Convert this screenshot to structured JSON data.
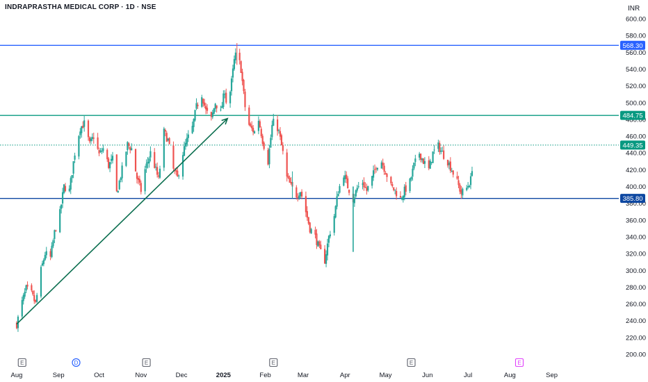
{
  "header": {
    "title": "INDRAPRASTHA MEDICAL CORP · 1D · NSE",
    "currency": "INR"
  },
  "colors": {
    "up": "#26a69a",
    "down": "#ef5350",
    "blue_line": "#2962ff",
    "navy_line": "#0d47a1",
    "green_line": "#089981",
    "trend": "#0b6e4f"
  },
  "chart_data": {
    "type": "candlestick",
    "title": "INDRAPRASTHA MEDICAL CORP · 1D · NSE",
    "y_axis": {
      "min": 200,
      "max": 600,
      "ticks": [
        200,
        220,
        240,
        260,
        280,
        300,
        320,
        340,
        360,
        380,
        400,
        420,
        440,
        460,
        480,
        500,
        520,
        540,
        560,
        580,
        600
      ],
      "unit": "INR"
    },
    "x_axis": {
      "labels": [
        "Aug",
        "Sep",
        "Oct",
        "Nov",
        "Dec",
        "2025",
        "Feb",
        "Mar",
        "Apr",
        "May",
        "Jun",
        "Jul",
        "Aug",
        "Sep"
      ],
      "start": "2024-08-01",
      "end": "2025-09-30"
    },
    "price_levels": [
      {
        "value": "568.30",
        "color": "#2962ff"
      },
      {
        "value": "484.75",
        "color": "#089981"
      },
      {
        "value": "449.35",
        "color": "#089981",
        "dotted": true
      },
      {
        "value": "385.80",
        "color": "#0d47a1"
      }
    ],
    "trendline": {
      "from": {
        "date": "2024-08-01",
        "price": 236
      },
      "to": {
        "date": "2025-01-04",
        "price": 481
      },
      "arrow": true
    },
    "events": [
      {
        "date": "2024-08-05",
        "letter": "E",
        "kind": "earnings"
      },
      {
        "date": "2024-09-14",
        "letter": "D",
        "kind": "dividend"
      },
      {
        "date": "2024-11-05",
        "letter": "E",
        "kind": "earnings"
      },
      {
        "date": "2025-02-07",
        "letter": "E",
        "kind": "earnings"
      },
      {
        "date": "2025-05-20",
        "letter": "E",
        "kind": "earnings"
      },
      {
        "date": "2025-08-08",
        "letter": "E",
        "kind": "earnings-upcoming"
      }
    ],
    "price_path": [
      [
        "2024-08-01",
        236
      ],
      [
        "2024-08-05",
        262
      ],
      [
        "2024-08-08",
        278
      ],
      [
        "2024-08-12",
        272
      ],
      [
        "2024-08-15",
        260
      ],
      [
        "2024-08-19",
        300
      ],
      [
        "2024-08-22",
        320
      ],
      [
        "2024-08-26",
        315
      ],
      [
        "2024-08-29",
        345
      ],
      [
        "2024-09-02",
        368
      ],
      [
        "2024-09-05",
        400
      ],
      [
        "2024-09-09",
        395
      ],
      [
        "2024-09-13",
        440
      ],
      [
        "2024-09-17",
        470
      ],
      [
        "2024-09-20",
        475
      ],
      [
        "2024-09-24",
        450
      ],
      [
        "2024-09-27",
        460
      ],
      [
        "2024-10-01",
        438
      ],
      [
        "2024-10-04",
        445
      ],
      [
        "2024-10-08",
        425
      ],
      [
        "2024-10-11",
        432
      ],
      [
        "2024-10-14",
        392
      ],
      [
        "2024-10-18",
        420
      ],
      [
        "2024-10-22",
        450
      ],
      [
        "2024-10-25",
        445
      ],
      [
        "2024-10-29",
        410
      ],
      [
        "2024-11-01",
        395
      ],
      [
        "2024-11-04",
        420
      ],
      [
        "2024-11-08",
        440
      ],
      [
        "2024-11-11",
        425
      ],
      [
        "2024-11-14",
        408
      ],
      [
        "2024-11-18",
        465
      ],
      [
        "2024-11-21",
        455
      ],
      [
        "2024-11-25",
        420
      ],
      [
        "2024-11-28",
        410
      ],
      [
        "2024-12-02",
        440
      ],
      [
        "2024-12-05",
        455
      ],
      [
        "2024-12-09",
        470
      ],
      [
        "2024-12-12",
        495
      ],
      [
        "2024-12-16",
        510
      ],
      [
        "2024-12-19",
        490
      ],
      [
        "2024-12-23",
        480
      ],
      [
        "2024-12-26",
        500
      ],
      [
        "2024-12-30",
        488
      ],
      [
        "2025-01-02",
        515
      ],
      [
        "2025-01-04",
        490
      ],
      [
        "2025-01-07",
        525
      ],
      [
        "2025-01-09",
        550
      ],
      [
        "2025-01-11",
        562
      ],
      [
        "2025-01-14",
        540
      ],
      [
        "2025-01-16",
        510
      ],
      [
        "2025-01-18",
        480
      ],
      [
        "2025-01-21",
        470
      ],
      [
        "2025-01-24",
        465
      ],
      [
        "2025-01-27",
        480
      ],
      [
        "2025-01-30",
        455
      ],
      [
        "2025-02-03",
        430
      ],
      [
        "2025-02-06",
        472
      ],
      [
        "2025-02-08",
        480
      ],
      [
        "2025-02-11",
        465
      ],
      [
        "2025-02-14",
        440
      ],
      [
        "2025-02-17",
        410
      ],
      [
        "2025-02-20",
        400
      ],
      [
        "2025-02-24",
        390
      ],
      [
        "2025-02-27",
        395
      ],
      [
        "2025-03-03",
        370
      ],
      [
        "2025-03-06",
        350
      ],
      [
        "2025-03-10",
        340
      ],
      [
        "2025-03-13",
        325
      ],
      [
        "2025-03-17",
        312
      ],
      [
        "2025-03-20",
        340
      ],
      [
        "2025-03-24",
        365
      ],
      [
        "2025-03-27",
        395
      ],
      [
        "2025-03-31",
        415
      ],
      [
        "2025-04-03",
        400
      ],
      [
        "2025-04-07",
        385
      ],
      [
        "2025-04-10",
        398
      ],
      [
        "2025-04-14",
        405
      ],
      [
        "2025-04-17",
        395
      ],
      [
        "2025-04-21",
        410
      ],
      [
        "2025-04-24",
        425
      ],
      [
        "2025-04-28",
        430
      ],
      [
        "2025-05-01",
        418
      ],
      [
        "2025-05-05",
        400
      ],
      [
        "2025-05-08",
        395
      ],
      [
        "2025-05-12",
        385
      ],
      [
        "2025-05-15",
        395
      ],
      [
        "2025-05-19",
        405
      ],
      [
        "2025-05-22",
        425
      ],
      [
        "2025-05-26",
        440
      ],
      [
        "2025-05-29",
        430
      ],
      [
        "2025-06-02",
        420
      ],
      [
        "2025-06-05",
        440
      ],
      [
        "2025-06-09",
        448
      ],
      [
        "2025-06-12",
        440
      ],
      [
        "2025-06-16",
        430
      ],
      [
        "2025-06-19",
        420
      ],
      [
        "2025-06-23",
        405
      ],
      [
        "2025-06-26",
        392
      ],
      [
        "2025-06-30",
        398
      ],
      [
        "2025-07-03",
        408
      ],
      [
        "2025-07-06",
        452
      ]
    ]
  }
}
